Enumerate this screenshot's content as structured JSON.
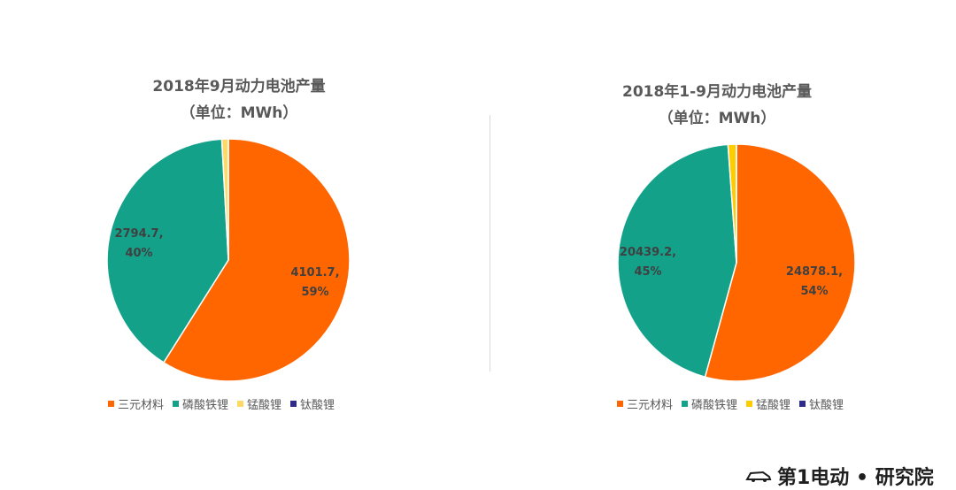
{
  "chart_data": [
    {
      "type": "pie",
      "title": "2018年9月动力电池产量",
      "subtitle": "（单位：MWh）",
      "legend_position": "bottom",
      "categories": [
        "三元材料",
        "磷酸铁锂",
        "锰酸锂",
        "钛酸锂"
      ],
      "values": [
        4101.7,
        2794.7,
        60,
        0.5
      ],
      "colors": [
        "#FF6600",
        "#13A18A",
        "#FFD966",
        "#2E2A8C"
      ],
      "data_labels": [
        {
          "value": "4101.7,",
          "percent": "59%"
        },
        {
          "value": "2794.7,",
          "percent": "40%"
        },
        null,
        null
      ]
    },
    {
      "type": "pie",
      "title": "2018年1-9月动力电池产量",
      "subtitle": "（单位：MWh）",
      "legend_position": "bottom",
      "categories": [
        "三元材料",
        "磷酸铁锂",
        "锰酸锂",
        "钛酸锂"
      ],
      "values": [
        24878.1,
        20439.2,
        520,
        5
      ],
      "colors": [
        "#FF6600",
        "#13A18A",
        "#FFCC00",
        "#2E2A8C"
      ],
      "data_labels": [
        {
          "value": "24878.1,",
          "percent": "54%"
        },
        {
          "value": "20439.2,",
          "percent": "45%"
        },
        null,
        null
      ]
    }
  ],
  "watermark": {
    "text": "第1电动 • 研究院"
  }
}
